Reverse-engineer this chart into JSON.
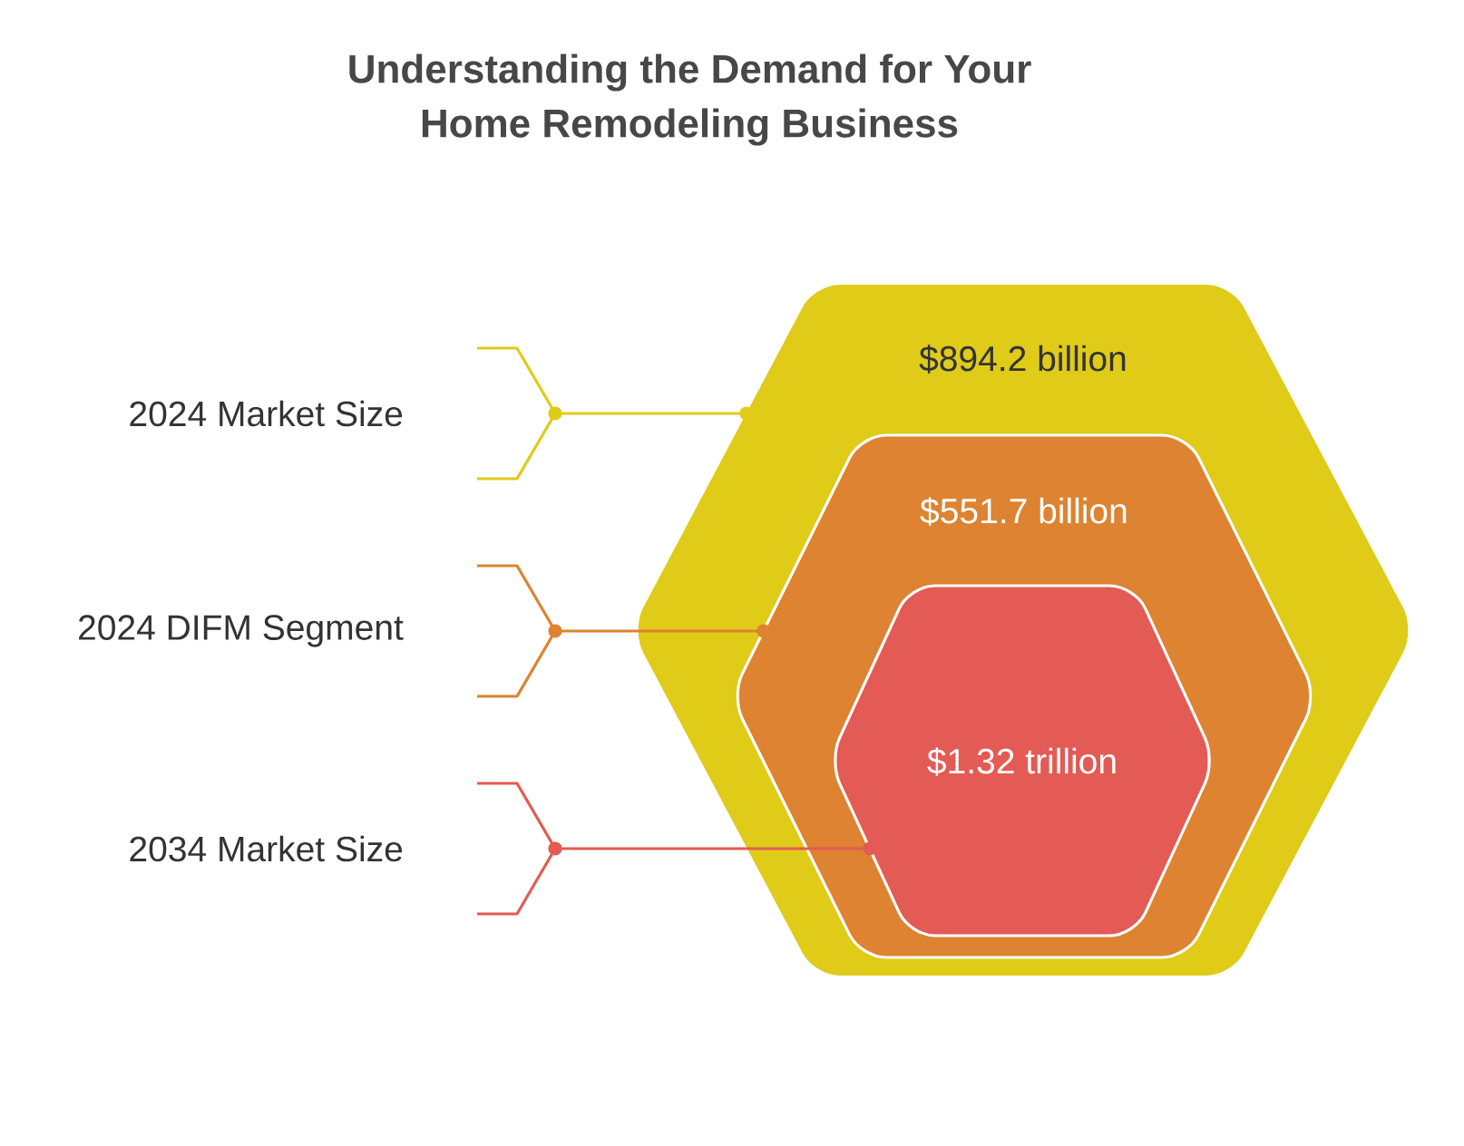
{
  "chart_data": {
    "type": "other",
    "title": "Understanding the Demand for Your Home Remodeling Business",
    "categories": [
      "2024 Market Size",
      "2024 DIFM Segment",
      "2034 Market Size"
    ],
    "values": [
      894.2,
      551.7,
      1.32
    ],
    "value_labels": [
      "$894.2 billion",
      "$551.7 billion",
      "$1.32 trillion"
    ],
    "colors": [
      "#dfcb18",
      "#dd8331",
      "#e45a54"
    ]
  }
}
